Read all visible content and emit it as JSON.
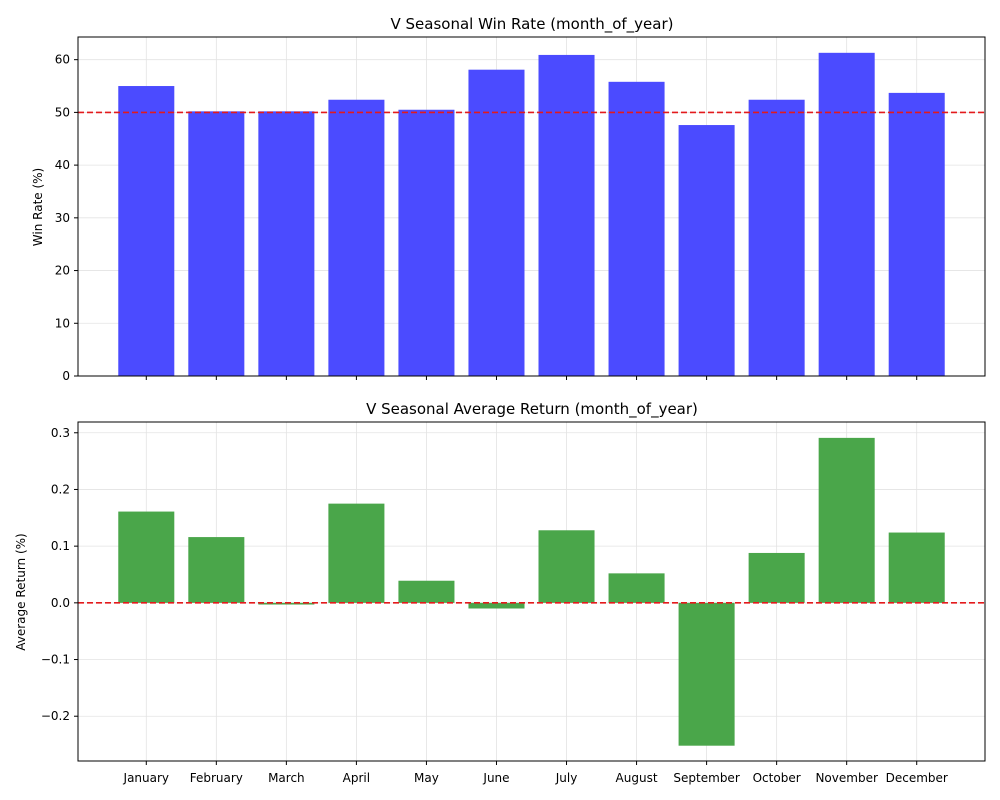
{
  "chart_data": [
    {
      "type": "bar",
      "title": "V Seasonal Win Rate (month_of_year)",
      "ylabel": "Win Rate (%)",
      "categories": [
        "January",
        "February",
        "March",
        "April",
        "May",
        "June",
        "July",
        "August",
        "September",
        "October",
        "November",
        "December"
      ],
      "values": [
        55.0,
        50.2,
        50.2,
        52.4,
        50.5,
        58.1,
        60.9,
        55.8,
        47.6,
        52.4,
        61.3,
        53.7
      ],
      "ylim": [
        0,
        64.3
      ],
      "yticks": [
        0,
        10,
        20,
        30,
        40,
        50,
        60
      ],
      "ytick_labels": [
        "0",
        "10",
        "20",
        "30",
        "40",
        "50",
        "60"
      ],
      "reference_line": 50,
      "bar_color": "#4b4bff",
      "reference_color": "#e31a1c",
      "grid": true,
      "show_x_labels": false
    },
    {
      "type": "bar",
      "title": "V Seasonal Average Return (month_of_year)",
      "ylabel": "Average Return (%)",
      "categories": [
        "January",
        "February",
        "March",
        "April",
        "May",
        "June",
        "July",
        "August",
        "September",
        "October",
        "November",
        "December"
      ],
      "values": [
        0.161,
        0.116,
        -0.003,
        0.175,
        0.039,
        -0.01,
        0.128,
        0.052,
        -0.252,
        0.088,
        0.291,
        0.124
      ],
      "ylim": [
        -0.279,
        0.319
      ],
      "yticks": [
        -0.2,
        -0.1,
        0.0,
        0.1,
        0.2,
        0.3
      ],
      "ytick_labels": [
        "−0.2",
        "−0.1",
        "0.0",
        "0.1",
        "0.2",
        "0.3"
      ],
      "reference_line": 0,
      "bar_color": "#4aa64a",
      "reference_color": "#e31a1c",
      "grid": true,
      "show_x_labels": true
    }
  ]
}
